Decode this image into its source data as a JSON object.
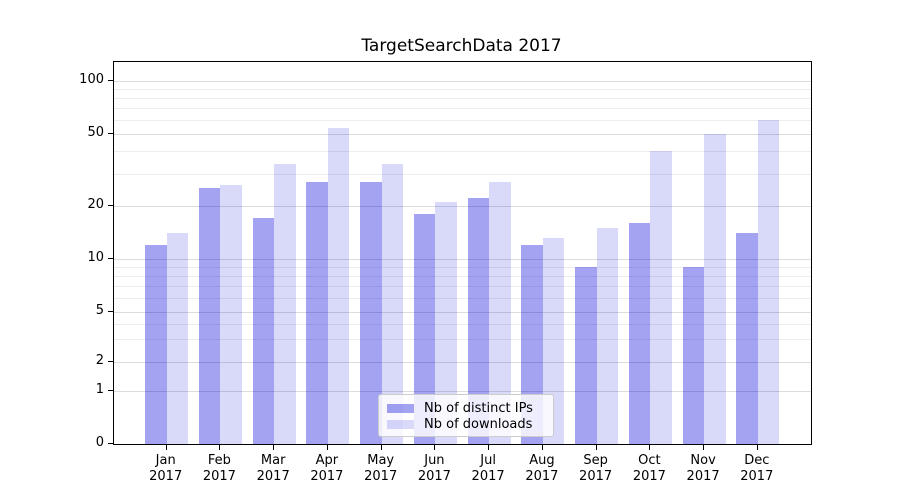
{
  "chart_data": {
    "type": "bar",
    "title": "TargetSearchData 2017",
    "categories": [
      "Jan",
      "Feb",
      "Mar",
      "Apr",
      "May",
      "Jun",
      "Jul",
      "Aug",
      "Sep",
      "Oct",
      "Nov",
      "Dec"
    ],
    "year_label": "2017",
    "series": [
      {
        "name": "Nb of distinct IPs",
        "color": "rgba(0,0,220,0.36)",
        "values": [
          12,
          25,
          17,
          27,
          27,
          18,
          22,
          12,
          9,
          16,
          9,
          14
        ]
      },
      {
        "name": "Nb of downloads",
        "color": "rgba(0,0,220,0.15)",
        "values": [
          14,
          26,
          34,
          54,
          34,
          21,
          27,
          13,
          15,
          40,
          50,
          60
        ]
      }
    ],
    "y_axis": {
      "scale": "quasi-log",
      "tick_values": [
        100,
        50,
        20,
        10,
        5,
        2,
        1,
        0
      ],
      "minor_grid_values": [
        3,
        4,
        6,
        7,
        8,
        9,
        30,
        40,
        60,
        70,
        80,
        90
      ],
      "ylim": [
        0,
        128
      ],
      "grid": true
    },
    "legend": {
      "position": "lower center inside"
    }
  }
}
